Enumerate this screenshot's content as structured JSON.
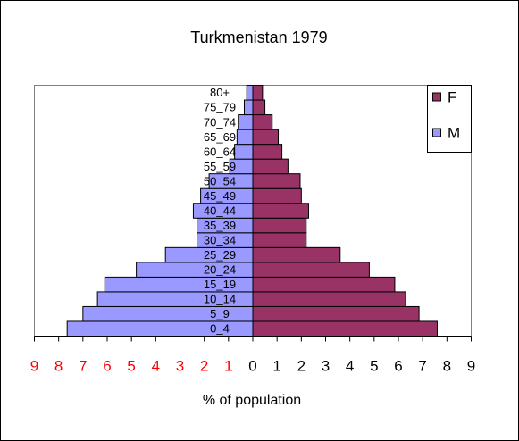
{
  "chart_data": {
    "type": "pyramid",
    "title": "Turkmenistan 1979",
    "x_label": "% of population",
    "categories": [
      "0_4",
      "5_9",
      "10_14",
      "15_19",
      "20_24",
      "25_29",
      "30_34",
      "35_39",
      "40_44",
      "45_49",
      "50_54",
      "55_59",
      "60_64",
      "65_69",
      "70_74",
      "75_79",
      "80+"
    ],
    "series": [
      {
        "name": "F",
        "color": "#993366",
        "side": "right",
        "values": [
          7.6,
          6.85,
          6.3,
          5.85,
          4.8,
          3.6,
          2.2,
          2.2,
          2.3,
          2.0,
          1.95,
          1.45,
          1.2,
          1.05,
          0.8,
          0.5,
          0.4
        ]
      },
      {
        "name": "M",
        "color": "#9999ff",
        "side": "left",
        "values": [
          7.65,
          7.0,
          6.4,
          6.1,
          4.8,
          3.6,
          2.3,
          2.3,
          2.45,
          2.15,
          1.8,
          0.95,
          0.75,
          0.65,
          0.6,
          0.35,
          0.25
        ]
      }
    ],
    "xlim": [
      -9,
      9
    ],
    "xticks": [
      {
        "value": -9,
        "label": "9"
      },
      {
        "value": -8,
        "label": "8"
      },
      {
        "value": -7,
        "label": "7"
      },
      {
        "value": -6,
        "label": "6"
      },
      {
        "value": -5,
        "label": "5"
      },
      {
        "value": -4,
        "label": "4"
      },
      {
        "value": -3,
        "label": "3"
      },
      {
        "value": -2,
        "label": "2"
      },
      {
        "value": -1,
        "label": "1"
      },
      0,
      1,
      2,
      3,
      4,
      5,
      6,
      7,
      8,
      9
    ],
    "negative_tick_color": "#ff0000",
    "legend": "upper right"
  }
}
